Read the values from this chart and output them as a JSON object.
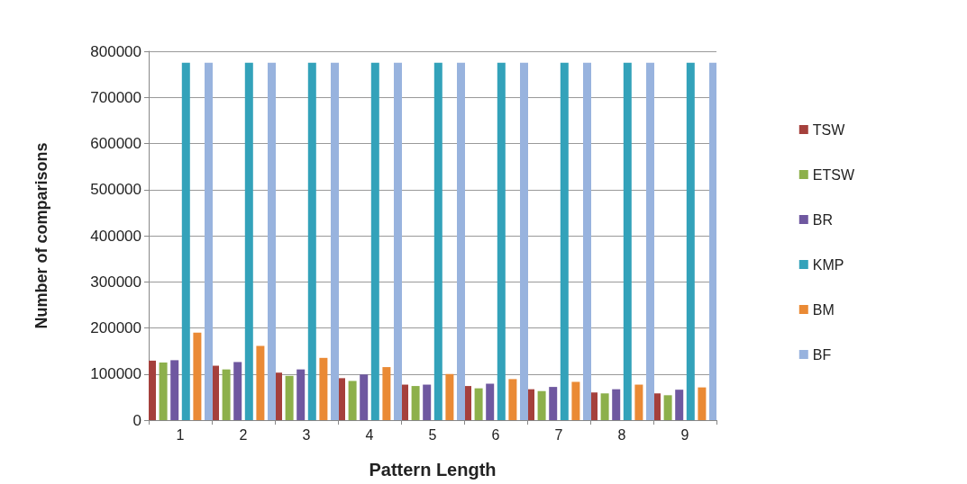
{
  "chart_data": {
    "type": "bar",
    "xlabel": "Pattern Length",
    "ylabel": "Number of comparisons",
    "categories": [
      "1",
      "2",
      "3",
      "4",
      "5",
      "6",
      "7",
      "8",
      "9"
    ],
    "series": [
      {
        "name": "TSW",
        "color": "#a5403c",
        "values": [
          129000,
          118000,
          103000,
          91000,
          77000,
          74000,
          67000,
          60000,
          58000
        ]
      },
      {
        "name": "ETSW",
        "color": "#8db04b",
        "values": [
          125000,
          110000,
          96000,
          85000,
          74000,
          69000,
          63000,
          58000,
          54000
        ]
      },
      {
        "name": "BR",
        "color": "#6f58a0",
        "values": [
          130000,
          126000,
          110000,
          99000,
          77000,
          79000,
          72000,
          67000,
          66000
        ]
      },
      {
        "name": "KMP",
        "color": "#33a2ba",
        "values": [
          775000,
          775000,
          775000,
          775000,
          775000,
          775000,
          775000,
          775000,
          775000
        ]
      },
      {
        "name": "BM",
        "color": "#ea8a35",
        "values": [
          190000,
          161000,
          135000,
          115000,
          100000,
          89000,
          83000,
          77000,
          71000
        ]
      },
      {
        "name": "BF",
        "color": "#98b3de",
        "values": [
          775000,
          775000,
          775000,
          775000,
          775000,
          775000,
          775000,
          775000,
          775000
        ]
      }
    ],
    "ylim": [
      0,
      800000
    ],
    "yticks": [
      0,
      100000,
      200000,
      300000,
      400000,
      500000,
      600000,
      700000,
      800000
    ],
    "grid": "y",
    "legend": "right"
  }
}
